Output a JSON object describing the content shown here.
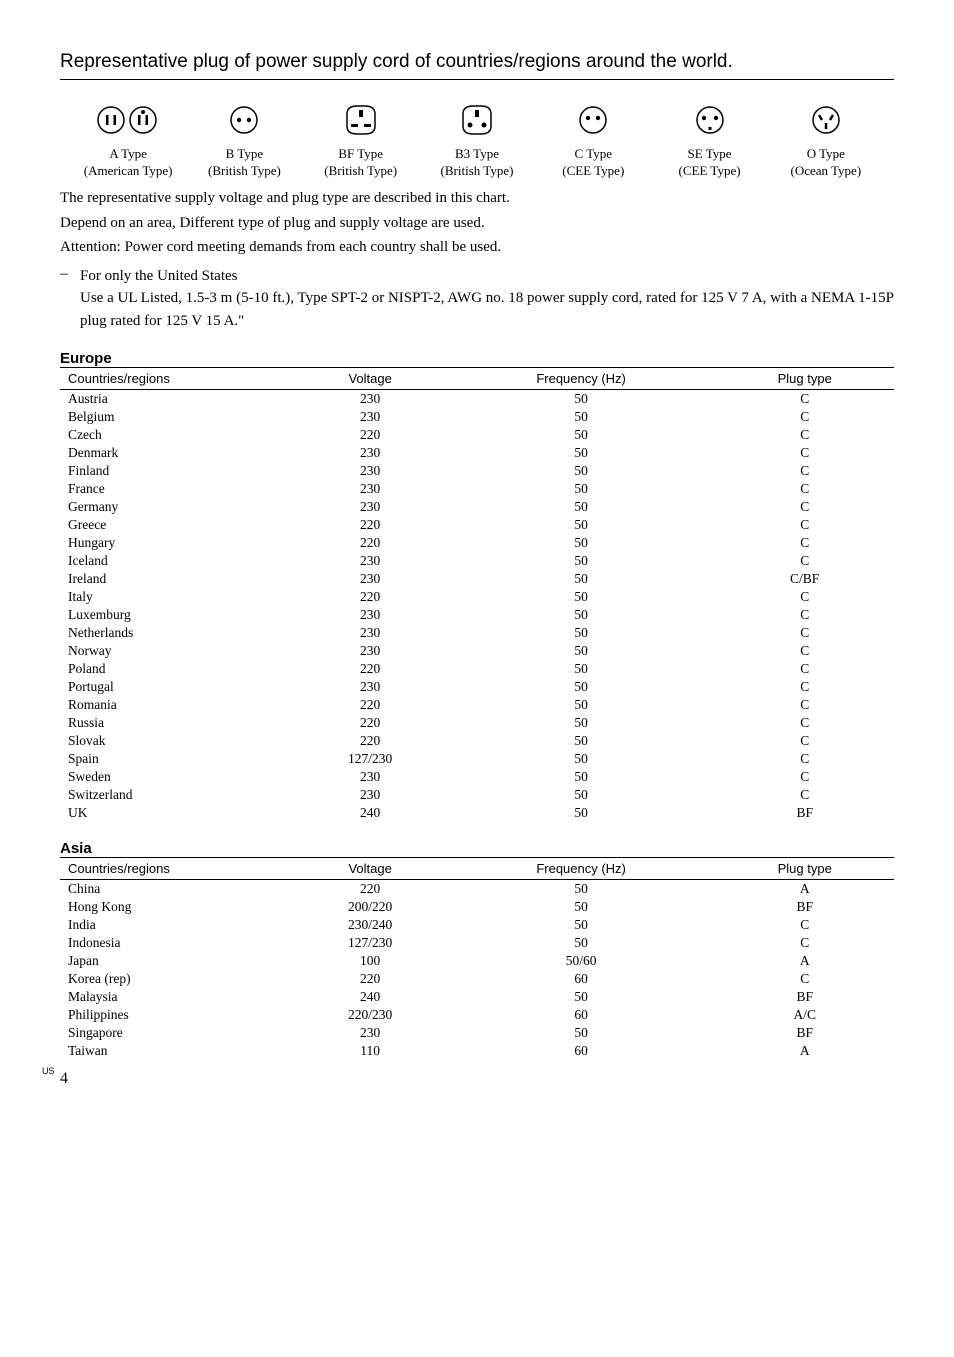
{
  "title": "Representative plug of power supply cord of countries/regions around the world.",
  "plug_types": [
    {
      "name": "A Type",
      "sub": "(American Type)"
    },
    {
      "name": "B Type",
      "sub": "(British Type)"
    },
    {
      "name": "BF Type",
      "sub": "(British Type)"
    },
    {
      "name": "B3 Type",
      "sub": "(British Type)"
    },
    {
      "name": "C Type",
      "sub": "(CEE Type)"
    },
    {
      "name": "SE Type",
      "sub": "(CEE Type)"
    },
    {
      "name": "O Type",
      "sub": "(Ocean Type)"
    }
  ],
  "body_lines": [
    "The representative supply voltage and plug type are described in this chart.",
    "Depend on an area, Different type of plug and supply voltage are used.",
    "Attention: Power cord meeting demands from each country shall be used."
  ],
  "dash_title": "For only the United States",
  "dash_body": "Use a UL Listed, 1.5-3 m (5-10 ft.), Type SPT-2 or NISPT-2, AWG no. 18 power supply cord, rated for 125 V 7 A, with a NEMA 1-15P plug rated for 125 V 15 A.\"",
  "table_headers": [
    "Countries/regions",
    "Voltage",
    "Frequency (Hz)",
    "Plug type"
  ],
  "europe_label": "Europe",
  "europe": [
    [
      "Austria",
      "230",
      "50",
      "C"
    ],
    [
      "Belgium",
      "230",
      "50",
      "C"
    ],
    [
      "Czech",
      "220",
      "50",
      "C"
    ],
    [
      "Denmark",
      "230",
      "50",
      "C"
    ],
    [
      "Finland",
      "230",
      "50",
      "C"
    ],
    [
      "France",
      "230",
      "50",
      "C"
    ],
    [
      "Germany",
      "230",
      "50",
      "C"
    ],
    [
      "Greece",
      "220",
      "50",
      "C"
    ],
    [
      "Hungary",
      "220",
      "50",
      "C"
    ],
    [
      "Iceland",
      "230",
      "50",
      "C"
    ],
    [
      "Ireland",
      "230",
      "50",
      "C/BF"
    ],
    [
      "Italy",
      "220",
      "50",
      "C"
    ],
    [
      "Luxemburg",
      "230",
      "50",
      "C"
    ],
    [
      "Netherlands",
      "230",
      "50",
      "C"
    ],
    [
      "Norway",
      "230",
      "50",
      "C"
    ],
    [
      "Poland",
      "220",
      "50",
      "C"
    ],
    [
      "Portugal",
      "230",
      "50",
      "C"
    ],
    [
      "Romania",
      "220",
      "50",
      "C"
    ],
    [
      "Russia",
      "220",
      "50",
      "C"
    ],
    [
      "Slovak",
      "220",
      "50",
      "C"
    ],
    [
      "Spain",
      "127/230",
      "50",
      "C"
    ],
    [
      "Sweden",
      "230",
      "50",
      "C"
    ],
    [
      "Switzerland",
      "230",
      "50",
      "C"
    ],
    [
      "UK",
      "240",
      "50",
      "BF"
    ]
  ],
  "asia_label": "Asia",
  "asia": [
    [
      "China",
      "220",
      "50",
      "A"
    ],
    [
      "Hong Kong",
      "200/220",
      "50",
      "BF"
    ],
    [
      "India",
      "230/240",
      "50",
      "C"
    ],
    [
      "Indonesia",
      "127/230",
      "50",
      "C"
    ],
    [
      "Japan",
      "100",
      "50/60",
      "A"
    ],
    [
      "Korea (rep)",
      "220",
      "60",
      "C"
    ],
    [
      "Malaysia",
      "240",
      "50",
      "BF"
    ],
    [
      "Philippines",
      "220/230",
      "60",
      "A/C"
    ],
    [
      "Singapore",
      "230",
      "50",
      "BF"
    ],
    [
      "Taiwan",
      "110",
      "60",
      "A"
    ]
  ],
  "footer_us": "US",
  "page_num": "4"
}
